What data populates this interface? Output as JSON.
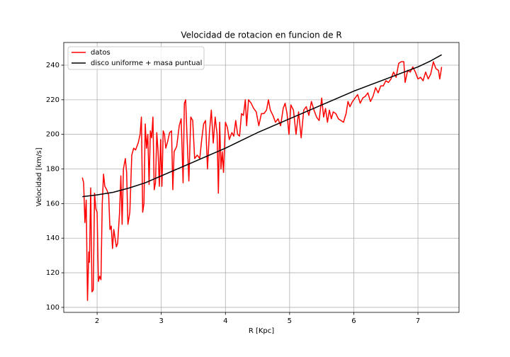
{
  "chart_data": {
    "type": "line",
    "title": "Velocidad de rotacion en funcion de R",
    "xlabel": "R [Kpc]",
    "ylabel": "Velocidad [km/s]",
    "xlim": [
      1.48,
      7.64
    ],
    "ylim": [
      97.1,
      253.1
    ],
    "xticks": [
      2,
      3,
      4,
      5,
      6,
      7
    ],
    "yticks": [
      100,
      120,
      140,
      160,
      180,
      200,
      220,
      240
    ],
    "grid": true,
    "legend": "upper left",
    "series": [
      {
        "name": "datos",
        "color": "#ff0000",
        "x": [
          1.77,
          1.79,
          1.81,
          1.83,
          1.85,
          1.87,
          1.88,
          1.9,
          1.92,
          1.94,
          1.96,
          1.98,
          2.0,
          2.02,
          2.04,
          2.06,
          2.08,
          2.1,
          2.12,
          2.15,
          2.18,
          2.2,
          2.22,
          2.24,
          2.26,
          2.28,
          2.3,
          2.32,
          2.35,
          2.37,
          2.39,
          2.41,
          2.44,
          2.46,
          2.48,
          2.51,
          2.54,
          2.57,
          2.6,
          2.64,
          2.67,
          2.69,
          2.71,
          2.73,
          2.75,
          2.77,
          2.79,
          2.81,
          2.83,
          2.85,
          2.87,
          2.89,
          2.91,
          2.93,
          2.95,
          2.97,
          2.99,
          3.01,
          3.03,
          3.05,
          3.07,
          3.1,
          3.13,
          3.16,
          3.18,
          3.2,
          3.24,
          3.28,
          3.31,
          3.34,
          3.36,
          3.38,
          3.4,
          3.43,
          3.46,
          3.49,
          3.52,
          3.56,
          3.6,
          3.63,
          3.66,
          3.69,
          3.72,
          3.75,
          3.78,
          3.81,
          3.84,
          3.87,
          3.89,
          3.91,
          3.93,
          3.95,
          3.97,
          4.0,
          4.03,
          4.06,
          4.1,
          4.13,
          4.16,
          4.19,
          4.22,
          4.25,
          4.28,
          4.31,
          4.33,
          4.36,
          4.4,
          4.44,
          4.48,
          4.52,
          4.56,
          4.6,
          4.64,
          4.67,
          4.7,
          4.74,
          4.78,
          4.82,
          4.86,
          4.9,
          4.93,
          4.96,
          4.99,
          5.02,
          5.06,
          5.1,
          5.14,
          5.18,
          5.22,
          5.26,
          5.3,
          5.34,
          5.38,
          5.42,
          5.46,
          5.5,
          5.53,
          5.56,
          5.59,
          5.62,
          5.65,
          5.68,
          5.72,
          5.76,
          5.8,
          5.84,
          5.88,
          5.91,
          5.94,
          5.98,
          6.02,
          6.06,
          6.1,
          6.14,
          6.18,
          6.22,
          6.26,
          6.3,
          6.34,
          6.38,
          6.42,
          6.46,
          6.5,
          6.54,
          6.58,
          6.62,
          6.66,
          6.7,
          6.74,
          6.78,
          6.8,
          6.84,
          6.88,
          6.92,
          6.96,
          7.0,
          7.04,
          7.08,
          7.12,
          7.16,
          7.2,
          7.24,
          7.28,
          7.32,
          7.34,
          7.37
        ],
        "values": [
          175,
          172,
          149,
          162,
          104,
          132,
          126,
          169,
          109,
          110,
          166,
          157,
          155,
          115,
          118,
          116,
          160,
          177,
          170,
          168,
          165,
          145,
          147,
          134,
          145,
          140,
          135,
          137,
          155,
          176,
          148,
          180,
          186,
          178,
          148,
          155,
          188,
          192,
          191,
          195,
          200,
          210,
          155,
          160,
          206,
          192,
          200,
          171,
          202,
          198,
          210,
          168,
          172,
          201,
          190,
          170,
          197,
          170,
          202,
          200,
          192,
          196,
          201,
          202,
          168,
          190,
          193,
          205,
          209,
          172,
          218,
          220,
          200,
          173,
          210,
          208,
          186,
          188,
          186,
          197,
          206,
          208,
          180,
          201,
          214,
          195,
          210,
          200,
          166,
          207,
          180,
          190,
          178,
          207,
          204,
          197,
          201,
          199,
          208,
          200,
          199,
          212,
          211,
          220,
          205,
          220,
          218,
          215,
          213,
          205,
          212,
          212,
          214,
          220,
          214,
          211,
          207,
          209,
          205,
          215,
          218,
          212,
          200,
          217,
          214,
          200,
          213,
          198,
          214,
          216,
          211,
          219,
          214,
          210,
          208,
          221,
          210,
          215,
          207,
          214,
          209,
          213,
          212,
          209,
          208,
          207,
          212,
          219,
          216,
          219,
          221,
          223,
          218,
          221,
          222,
          224,
          219,
          222,
          227,
          224,
          228,
          228,
          231,
          230,
          232,
          236,
          233,
          241,
          242,
          242,
          230,
          237,
          236,
          239,
          236,
          232,
          233,
          231,
          236,
          232,
          235,
          242,
          238,
          237,
          232,
          239
        ]
      },
      {
        "name": "disco uniforme + masa puntual",
        "color": "#000000",
        "x": [
          1.77,
          2.0,
          2.25,
          2.5,
          2.75,
          3.0,
          3.25,
          3.5,
          3.75,
          4.0,
          4.25,
          4.5,
          4.75,
          5.0,
          5.25,
          5.5,
          5.75,
          6.0,
          6.25,
          6.5,
          6.75,
          7.0,
          7.2,
          7.37
        ],
        "values": [
          164,
          165,
          166.5,
          169,
          172,
          176,
          180,
          184,
          188,
          192,
          196.5,
          201,
          205,
          209,
          213,
          217,
          221,
          225,
          228.5,
          232,
          235.5,
          239,
          242.5,
          246
        ]
      }
    ]
  }
}
